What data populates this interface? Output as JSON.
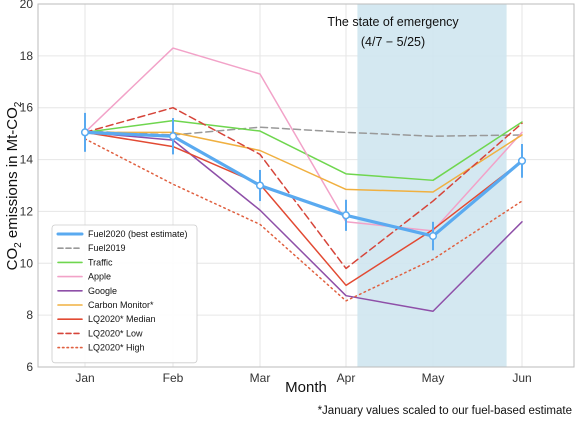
{
  "chart_data": {
    "type": "line",
    "title": "",
    "xlabel": "Month",
    "ylabel": "CO₂ emissions in Mt-CO₂",
    "ylabel_parts": [
      "CO",
      "2",
      " emissions in Mt-CO",
      "2"
    ],
    "categories": [
      "Jan",
      "Feb",
      "Mar",
      "Apr",
      "May",
      "Jun"
    ],
    "ylim": [
      6,
      20
    ],
    "yticks": [
      6,
      8,
      10,
      12,
      14,
      16,
      18,
      20
    ],
    "grid": true,
    "legend_position": "lower-left",
    "shaded_region": {
      "x_from": "Apr 7",
      "x_to": "May 25",
      "label_line1": "The state of emergency",
      "label_line2": "(4/7 − 5/25)",
      "color": "#cfe6ef"
    },
    "footnote": "*January values scaled to our fuel-based estimate",
    "series": [
      {
        "name": "Fuel2020 (best estimate)",
        "color": "#5aaaf0",
        "style": "solid",
        "width": 3.2,
        "markers": true,
        "values": [
          15.05,
          14.9,
          13.0,
          11.85,
          11.05,
          13.95
        ],
        "error": [
          0.75,
          0.7,
          0.6,
          0.6,
          0.55,
          0.65
        ]
      },
      {
        "name": "Fuel2019",
        "color": "#999999",
        "style": "dashed",
        "width": 1.5,
        "values": [
          15.1,
          14.95,
          15.25,
          15.05,
          14.9,
          14.95
        ]
      },
      {
        "name": "Traffic",
        "color": "#6fd64f",
        "style": "solid",
        "width": 1.5,
        "values": [
          15.05,
          15.5,
          15.1,
          13.45,
          13.2,
          15.45
        ]
      },
      {
        "name": "Apple",
        "color": "#f2a2c8",
        "style": "solid",
        "width": 1.5,
        "values": [
          15.05,
          18.3,
          17.3,
          11.6,
          11.25,
          15.05
        ]
      },
      {
        "name": "Google",
        "color": "#8e4fa8",
        "style": "solid",
        "width": 1.5,
        "values": [
          15.05,
          14.75,
          12.05,
          8.75,
          8.15,
          11.6
        ]
      },
      {
        "name": "Carbon Monitor*",
        "color": "#f0b040",
        "style": "solid",
        "width": 1.5,
        "values": [
          15.05,
          15.05,
          14.35,
          12.85,
          12.75,
          14.95
        ]
      },
      {
        "name": "LQ2020* Median",
        "color": "#e24a33",
        "style": "solid",
        "width": 1.5,
        "values": [
          15.05,
          14.5,
          13.05,
          9.15,
          11.3,
          13.95
        ]
      },
      {
        "name": "LQ2020* Low",
        "color": "#d6453a",
        "style": "dashed",
        "width": 1.5,
        "values": [
          15.05,
          16.0,
          14.2,
          9.8,
          12.4,
          15.4
        ]
      },
      {
        "name": "LQ2020* High",
        "color": "#e06040",
        "style": "dotted",
        "width": 1.5,
        "values": [
          14.8,
          13.05,
          11.5,
          8.55,
          10.15,
          12.4
        ]
      }
    ]
  }
}
